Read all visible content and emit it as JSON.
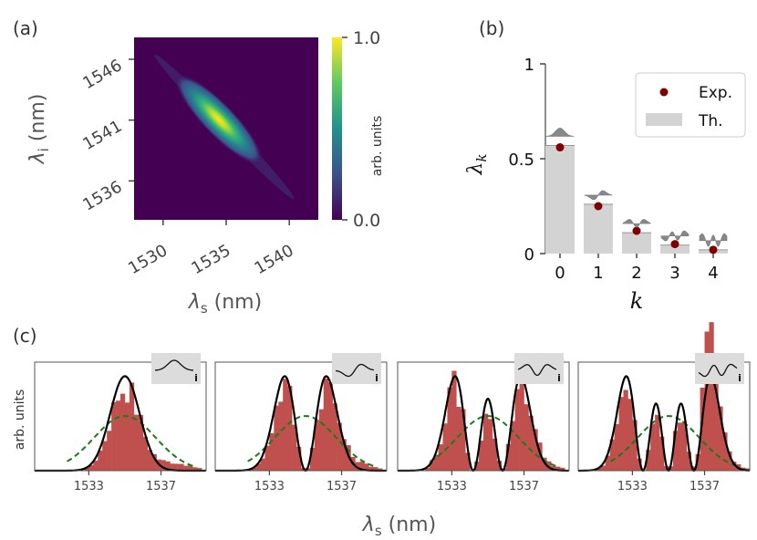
{
  "panel_labels": {
    "a": "(a)",
    "b": "(b)",
    "c": "(c)"
  },
  "colors": {
    "hist": "#c0504d",
    "theory_line": "#000000",
    "marginal": "#1a7a1a",
    "bar": "#d3d3d3",
    "exp_point": "#800000",
    "inset_bg": "#dcdcdc"
  },
  "chart_data": [
    {
      "type": "heatmap",
      "panel": "a",
      "xlabel_sym": "λ",
      "xlabel_sub": "s",
      "xlabel_unit": " (nm)",
      "ylabel_sym": "λ",
      "ylabel_sub": "i",
      "ylabel_unit": " (nm)",
      "xlim": [
        1527.7,
        1542.3
      ],
      "ylim": [
        1532.8,
        1547.8
      ],
      "xticks": [
        "1530",
        "1535",
        "1540"
      ],
      "xtick_values": [
        1530,
        1535,
        1540
      ],
      "yticks": [
        "1536",
        "1541",
        "1546"
      ],
      "ytick_values": [
        1536,
        1541,
        1546
      ],
      "colorscale": "viridis",
      "colorbar_ticks": [
        "0.0",
        "1.0"
      ],
      "colorbar_label": "arb. units",
      "center": [
        1535,
        1541
      ],
      "anticorrelated": true
    },
    {
      "type": "bar",
      "panel": "b",
      "categories": [
        "0",
        "1",
        "2",
        "3",
        "4"
      ],
      "series": [
        {
          "name": "Th.",
          "values": [
            0.57,
            0.26,
            0.11,
            0.045,
            0.02
          ]
        },
        {
          "name": "Exp.",
          "values": [
            0.56,
            0.25,
            0.12,
            0.05,
            0.02
          ]
        }
      ],
      "xlabel": "k",
      "ylabel_sym": "λ",
      "ylabel_sub": "k",
      "ylim": [
        0,
        1
      ],
      "yticks": [
        "0",
        "0.5",
        "1"
      ],
      "ytick_values": [
        0,
        0.5,
        1
      ],
      "legend": {
        "position": "top-right",
        "entries": [
          "Exp.",
          "Th."
        ]
      }
    },
    {
      "type": "histogram",
      "panel": "c",
      "xlabel_sym": "λ",
      "xlabel_sub": "s",
      "xlabel_unit": " (nm)",
      "ylabel": "arb. units",
      "xlim": [
        1530,
        1539.5
      ],
      "xticks": [
        "1533",
        "1537"
      ],
      "xtick_values": [
        1533,
        1537
      ],
      "marginal_center": 1535,
      "subplots": [
        {
          "mode": 0,
          "inset_label": "i"
        },
        {
          "mode": 1,
          "inset_label": "i"
        },
        {
          "mode": 2,
          "inset_label": "i"
        },
        {
          "mode": 3,
          "inset_label": "i"
        }
      ]
    }
  ]
}
